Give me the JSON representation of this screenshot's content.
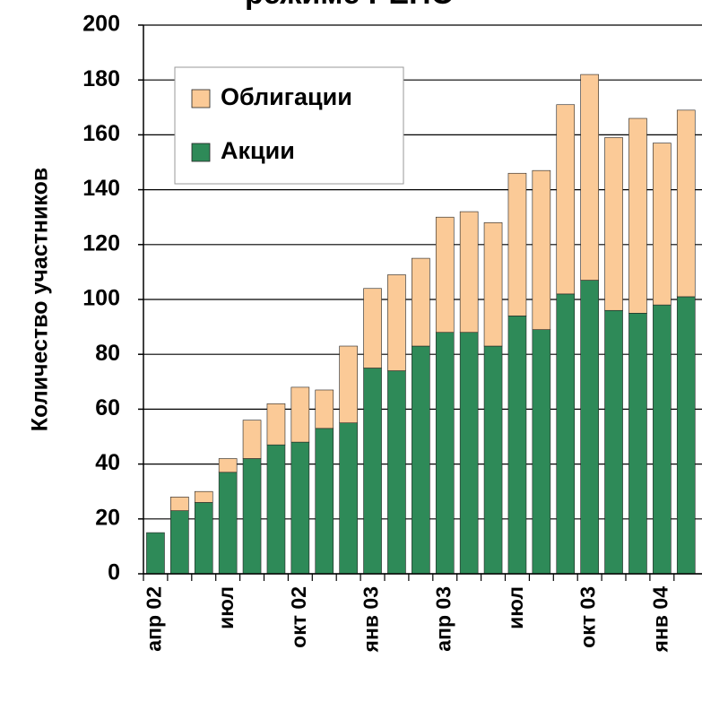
{
  "chart_data": {
    "type": "stacked_bar",
    "title": "режиме РЕПО",
    "y_label": "Количество участников",
    "categories": [
      "апр 02",
      null,
      null,
      "июл",
      null,
      null,
      "окт 02",
      null,
      null,
      "янв 03",
      null,
      null,
      "апр 03",
      null,
      null,
      "июл",
      null,
      null,
      "окт 03",
      null,
      null,
      "янв 04",
      null
    ],
    "series": [
      {
        "name": "Акции",
        "color": "#2e8a58",
        "values": [
          15,
          23,
          26,
          37,
          42,
          47,
          48,
          53,
          55,
          75,
          74,
          83,
          88,
          88,
          83,
          94,
          89,
          102,
          107,
          96,
          95,
          98,
          101
        ]
      },
      {
        "name": "Облигации",
        "color": "#fbca97",
        "values": [
          0,
          5,
          4,
          5,
          14,
          15,
          20,
          14,
          28,
          29,
          35,
          32,
          42,
          44,
          45,
          52,
          58,
          69,
          75,
          63,
          71,
          59,
          68
        ]
      }
    ],
    "ylim": [
      0,
      200
    ],
    "yticks": [
      0,
      20,
      40,
      60,
      80,
      100,
      120,
      140,
      160,
      180,
      200
    ],
    "grid": true,
    "legend": "top-left"
  }
}
